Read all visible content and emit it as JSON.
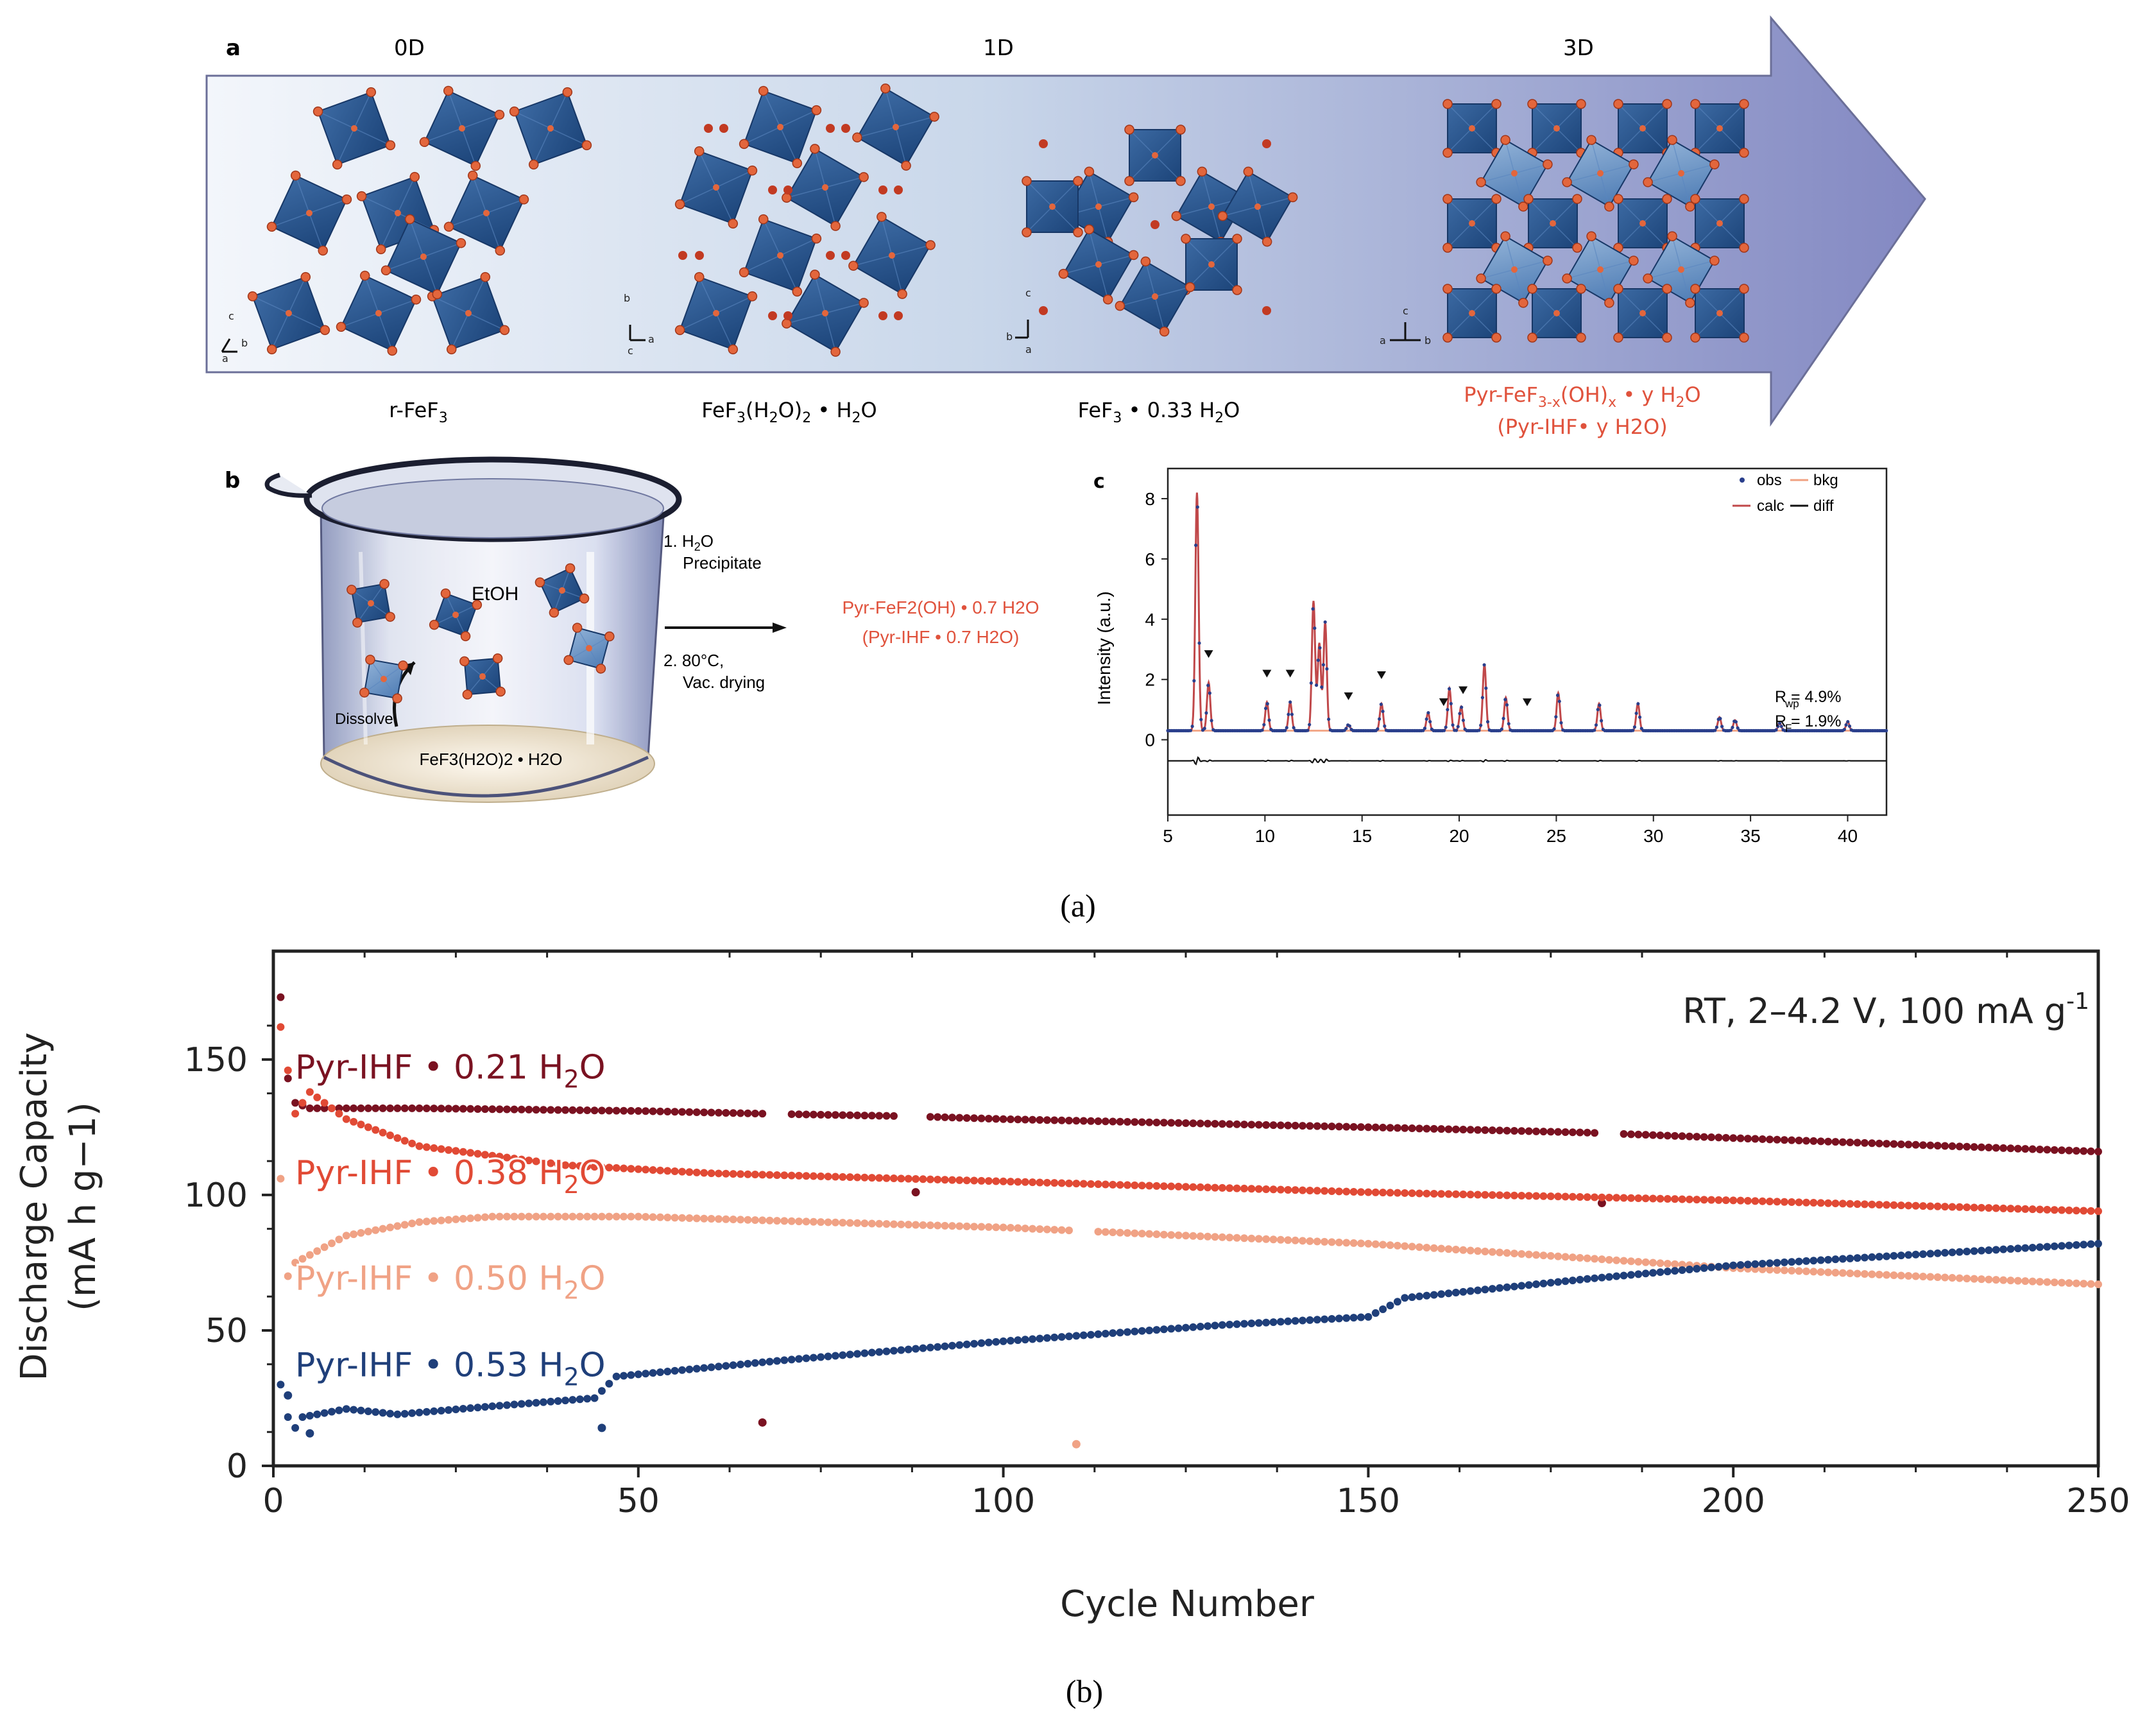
{
  "colors": {
    "blue": "#1f3f7a",
    "pink": "#f0a285",
    "red": "#e14a35",
    "darkred": "#7a1221",
    "oct": "#2a5a93",
    "atom": "#e3663c",
    "arrow_start": "#eef3f9",
    "arrow_end": "#8892c4"
  },
  "panel_a": {
    "label": "a",
    "dims": [
      "0D",
      "1D",
      "3D"
    ],
    "axes": {
      "s1": [
        "c",
        "b",
        "a"
      ],
      "s2": [
        "b",
        "a",
        "c"
      ],
      "s3": [
        "a",
        "b",
        "c"
      ],
      "s4": [
        "c",
        "a",
        "b"
      ]
    },
    "compounds": [
      {
        "pre": "r-FeF",
        "sub": "3",
        "post": ""
      },
      {
        "pre": "FeF",
        "sub": "3",
        "mid": "(H",
        "sub2": "2",
        "mid2": "O)",
        "sub3": "2",
        "post": " • H",
        "sub4": "2",
        "post2": "O"
      },
      {
        "pre": "FeF",
        "sub": "3",
        "post": " • 0.33 H",
        "sub2": "2",
        "post2": "O"
      },
      {
        "line1_pre": "Pyr-FeF",
        "line1_sub": "3-x",
        "line1_mid": "(OH)",
        "line1_sub2": "x",
        "line1_post": " • y H",
        "line1_sub3": "2",
        "line1_post2": "O",
        "line2": "(Pyr-IHF• y H2O)"
      }
    ]
  },
  "panel_b": {
    "label": "b",
    "solvent": "EtOH",
    "dissolve": "Dissolve",
    "precursor": "FeF3(H2O)2 • H2O",
    "step1_pre": "1. H",
    "step1_sub": "2",
    "step1_post": "O",
    "step1b": "Precipitate",
    "step2": "2. 80°C,",
    "step2b": "Vac. drying",
    "product_line1": "Pyr-FeF2(OH) • 0.7 H2O",
    "product_line2": "(Pyr-IHF • 0.7 H2O)"
  },
  "panel_c": {
    "label": "c",
    "ylabel": "Intensity (a.u.)",
    "legend": [
      "obs",
      "bkg",
      "calc",
      "diff"
    ],
    "rwp": "R  = 4.9%",
    "rwp_sub": "wp",
    "rf": "R  = 1.9%",
    "rf_sub": "F"
  },
  "caption_a": "(a)",
  "caption_b": "(b)",
  "chart_data": [
    {
      "type": "line",
      "title": "",
      "xlabel": "",
      "ylabel": "Intensity (a.u.)",
      "xlim": [
        5,
        42
      ],
      "ylim": [
        -2.5,
        9
      ],
      "x_ticks": [
        5,
        10,
        15,
        20,
        25,
        30,
        35,
        40
      ],
      "y_ticks": [
        0,
        2,
        4,
        6,
        8
      ],
      "series": [
        {
          "name": "obs / calc",
          "peaks": [
            [
              6.5,
              7.9
            ],
            [
              7.1,
              1.6
            ],
            [
              10.1,
              0.95
            ],
            [
              11.3,
              0.95
            ],
            [
              12.5,
              4.3
            ],
            [
              12.8,
              2.9
            ],
            [
              13.1,
              3.6
            ],
            [
              14.3,
              0.2
            ],
            [
              16.0,
              0.9
            ],
            [
              18.4,
              0.6
            ],
            [
              19.5,
              1.4
            ],
            [
              20.1,
              0.8
            ],
            [
              21.3,
              2.2
            ],
            [
              22.4,
              1.1
            ],
            [
              25.1,
              1.25
            ],
            [
              27.2,
              0.9
            ],
            [
              29.2,
              0.9
            ],
            [
              33.4,
              0.45
            ],
            [
              34.2,
              0.35
            ],
            [
              36.5,
              0.25
            ],
            [
              40.0,
              0.3
            ]
          ]
        },
        {
          "name": "bkg",
          "level": 0.3
        },
        {
          "name": "diff",
          "offset": -0.7
        }
      ],
      "markers": [
        7.1,
        10.1,
        11.3,
        14.3,
        16.0,
        19.2,
        20.2,
        23.5
      ]
    },
    {
      "type": "scatter",
      "title": "RT, 2–4.2 V, 100 mA g-1",
      "xlabel": "Cycle Number",
      "ylabel_line1": "Discharge Capacity",
      "ylabel_line2": "(mA h g−1)",
      "xlim": [
        0,
        250
      ],
      "ylim": [
        0,
        190
      ],
      "x_ticks": [
        0,
        50,
        100,
        150,
        200,
        250
      ],
      "y_ticks": [
        0,
        50,
        100,
        150
      ],
      "series": [
        {
          "name": "Pyr-IHF • 0.21 H2O",
          "label_pre": "Pyr-IHF • 0.21 H",
          "sub": "2",
          "post": "O",
          "color": "#7a1221",
          "points": [
            [
              1,
              173
            ],
            [
              2,
              143
            ],
            [
              3,
              134
            ],
            [
              5,
              132
            ],
            [
              20,
              132
            ],
            [
              50,
              131
            ],
            [
              67,
              130
            ],
            [
              88,
              129
            ],
            [
              100,
              128
            ],
            [
              150,
              125
            ],
            [
              180,
              123
            ],
            [
              200,
              121
            ],
            [
              250,
              116
            ]
          ],
          "gaps": [
            [
              68,
              70
            ],
            [
              86,
              89
            ],
            [
              182,
              184
            ]
          ],
          "outliers": [
            [
              88,
              101
            ],
            [
              182,
              97
            ],
            [
              67,
              16
            ]
          ]
        },
        {
          "name": "Pyr-IHF • 0.38 H2O",
          "label_pre": "Pyr-IHF • 0.38 H",
          "sub": "2",
          "post": "O",
          "color": "#e14a35",
          "points": [
            [
              1,
              162
            ],
            [
              3,
              130
            ],
            [
              5,
              138
            ],
            [
              10,
              128
            ],
            [
              20,
              118
            ],
            [
              40,
              111
            ],
            [
              60,
              108
            ],
            [
              100,
              105
            ],
            [
              150,
              101
            ],
            [
              200,
              98
            ],
            [
              250,
              94
            ]
          ]
        },
        {
          "name": "Pyr-IHF • 0.50 H2O",
          "label_pre": "Pyr-IHF • 0.50 H",
          "sub": "2",
          "post": "O",
          "color": "#f0a285",
          "points": [
            [
              1,
              106
            ],
            [
              2,
              70
            ],
            [
              3,
              75
            ],
            [
              10,
              85
            ],
            [
              20,
              90
            ],
            [
              30,
              92
            ],
            [
              50,
              92
            ],
            [
              100,
              88
            ],
            [
              150,
              82
            ],
            [
              200,
              73
            ],
            [
              250,
              67
            ]
          ],
          "gaps": [
            [
              110,
              112
            ]
          ],
          "outliers": [
            [
              110,
              8
            ]
          ]
        },
        {
          "name": "Pyr-IHF • 0.53 H2O",
          "label_pre": "Pyr-IHF • 0.53 H",
          "sub": "2",
          "post": "O",
          "color": "#1f3f7a",
          "points": [
            [
              1,
              30
            ],
            [
              2,
              18
            ],
            [
              3,
              14
            ],
            [
              4,
              18
            ],
            [
              10,
              21
            ],
            [
              17,
              19
            ],
            [
              30,
              22
            ],
            [
              44,
              25
            ],
            [
              47,
              33
            ],
            [
              70,
              39
            ],
            [
              100,
              46
            ],
            [
              130,
              52
            ],
            [
              150,
              55
            ],
            [
              155,
              62
            ],
            [
              180,
              69
            ],
            [
              200,
              74
            ],
            [
              250,
              82
            ]
          ],
          "outliers": [
            [
              45,
              14
            ],
            [
              5,
              12
            ],
            [
              2,
              26
            ]
          ]
        }
      ]
    }
  ]
}
